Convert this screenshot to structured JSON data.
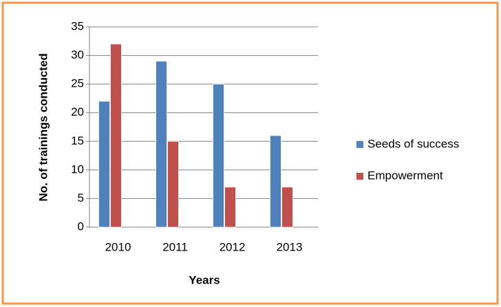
{
  "chart_data": {
    "type": "bar",
    "y_label": "No. of trainings conducted",
    "x_label": "Years",
    "categories": [
      "2010",
      "2011",
      "2012",
      "2013"
    ],
    "series": [
      {
        "name": "Seeds of success",
        "color": "#4f81bd",
        "values": [
          22,
          29,
          25,
          16
        ]
      },
      {
        "name": "Empowerment",
        "color": "#c0504d",
        "values": [
          32,
          15,
          7,
          7
        ]
      }
    ],
    "ylim": [
      0,
      35
    ],
    "yticks": [
      0,
      5,
      10,
      15,
      20,
      25,
      30,
      35
    ],
    "grid": true,
    "legend": "right"
  }
}
